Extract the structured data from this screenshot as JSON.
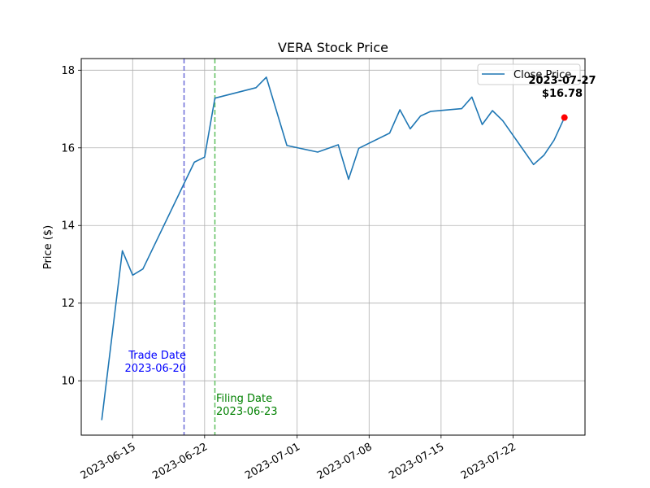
{
  "chart_data": {
    "type": "line",
    "title": "VERA Stock Price",
    "xlabel": "",
    "ylabel": "Price ($)",
    "x_ticks": [
      "2023-06-15",
      "2023-06-22",
      "2023-07-01",
      "2023-07-08",
      "2023-07-15",
      "2023-07-22"
    ],
    "y_ticks": [
      "10",
      "12",
      "14",
      "16",
      "18"
    ],
    "xlim": [
      "2023-06-10",
      "2023-07-29"
    ],
    "ylim": [
      8.6,
      18.3
    ],
    "grid": true,
    "legend_position": "top-right",
    "series": [
      {
        "name": "Close Price",
        "color": "#1f77b4",
        "points": [
          {
            "x": "2023-06-12",
            "y": 9.0
          },
          {
            "x": "2023-06-14",
            "y": 13.35
          },
          {
            "x": "2023-06-15",
            "y": 12.72
          },
          {
            "x": "2023-06-16",
            "y": 12.88
          },
          {
            "x": "2023-06-21",
            "y": 15.63
          },
          {
            "x": "2023-06-22",
            "y": 15.76
          },
          {
            "x": "2023-06-23",
            "y": 17.28
          },
          {
            "x": "2023-06-27",
            "y": 17.55
          },
          {
            "x": "2023-06-28",
            "y": 17.82
          },
          {
            "x": "2023-06-30",
            "y": 16.06
          },
          {
            "x": "2023-07-03",
            "y": 15.89
          },
          {
            "x": "2023-07-05",
            "y": 16.08
          },
          {
            "x": "2023-07-06",
            "y": 15.19
          },
          {
            "x": "2023-07-07",
            "y": 15.99
          },
          {
            "x": "2023-07-10",
            "y": 16.38
          },
          {
            "x": "2023-07-11",
            "y": 16.98
          },
          {
            "x": "2023-07-12",
            "y": 16.49
          },
          {
            "x": "2023-07-13",
            "y": 16.82
          },
          {
            "x": "2023-07-14",
            "y": 16.94
          },
          {
            "x": "2023-07-17",
            "y": 17.01
          },
          {
            "x": "2023-07-18",
            "y": 17.31
          },
          {
            "x": "2023-07-19",
            "y": 16.6
          },
          {
            "x": "2023-07-20",
            "y": 16.96
          },
          {
            "x": "2023-07-21",
            "y": 16.7
          },
          {
            "x": "2023-07-24",
            "y": 15.57
          },
          {
            "x": "2023-07-25",
            "y": 15.81
          },
          {
            "x": "2023-07-26",
            "y": 16.2
          },
          {
            "x": "2023-07-27",
            "y": 16.78
          }
        ]
      }
    ],
    "vertical_lines": [
      {
        "x": "2023-06-20",
        "color": "#6b6bd8",
        "label_line1": "Trade Date",
        "label_line2": "2023-06-20",
        "label_color": "#0000ff"
      },
      {
        "x": "2023-06-23",
        "color": "#5fbf5f",
        "label_line1": "Filing Date",
        "label_line2": "2023-06-23",
        "label_color": "#008000"
      }
    ],
    "highlight_point": {
      "x": "2023-07-27",
      "y": 16.78,
      "color": "#ff0000",
      "label_line1": "2023-07-27",
      "label_line2": "$16.78"
    }
  }
}
